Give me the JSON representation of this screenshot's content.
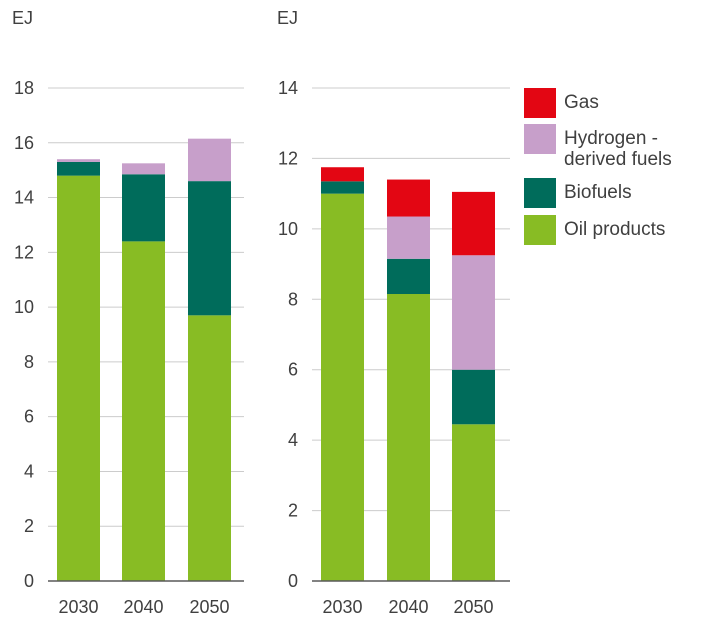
{
  "chart_data": [
    {
      "type": "bar",
      "stacked": true,
      "ylabel": "EJ",
      "categories": [
        "2030",
        "2040",
        "2050"
      ],
      "ylim": [
        0,
        18
      ],
      "yticks": [
        0,
        2,
        4,
        6,
        8,
        10,
        12,
        14,
        16,
        18
      ],
      "grid": true,
      "series": [
        {
          "name": "Oil products",
          "values": [
            14.8,
            12.4,
            9.7
          ]
        },
        {
          "name": "Biofuels",
          "values": [
            0.5,
            2.45,
            4.9
          ]
        },
        {
          "name": "Hydrogen - derived fuels",
          "values": [
            0.1,
            0.4,
            1.55
          ]
        }
      ]
    },
    {
      "type": "bar",
      "stacked": true,
      "ylabel": "EJ",
      "categories": [
        "2030",
        "2040",
        "2050"
      ],
      "ylim": [
        0,
        14
      ],
      "yticks": [
        0,
        2,
        4,
        6,
        8,
        10,
        12,
        14
      ],
      "grid": true,
      "series": [
        {
          "name": "Oil products",
          "values": [
            11.0,
            8.15,
            4.45
          ]
        },
        {
          "name": "Biofuels",
          "values": [
            0.35,
            1.0,
            1.55
          ]
        },
        {
          "name": "Hydrogen - derived fuels",
          "values": [
            0.0,
            1.2,
            3.25
          ]
        },
        {
          "name": "Gas",
          "values": [
            0.4,
            1.05,
            1.8
          ]
        }
      ]
    }
  ],
  "colors": {
    "Oil products": "#88bc24",
    "Biofuels": "#006c5b",
    "Hydrogen - derived fuels": "#c79fca",
    "Gas": "#e30613",
    "grid": "#cccccc",
    "axis": "#595959",
    "text": "#404040"
  },
  "legend": {
    "placement": "right",
    "items": [
      {
        "label": "Gas",
        "color": "#e30613"
      },
      {
        "label": "Hydrogen -\nderived fuels",
        "color": "#c79fca"
      },
      {
        "label": "Biofuels",
        "color": "#006c5b"
      },
      {
        "label": "Oil products",
        "color": "#88bc24"
      }
    ]
  }
}
